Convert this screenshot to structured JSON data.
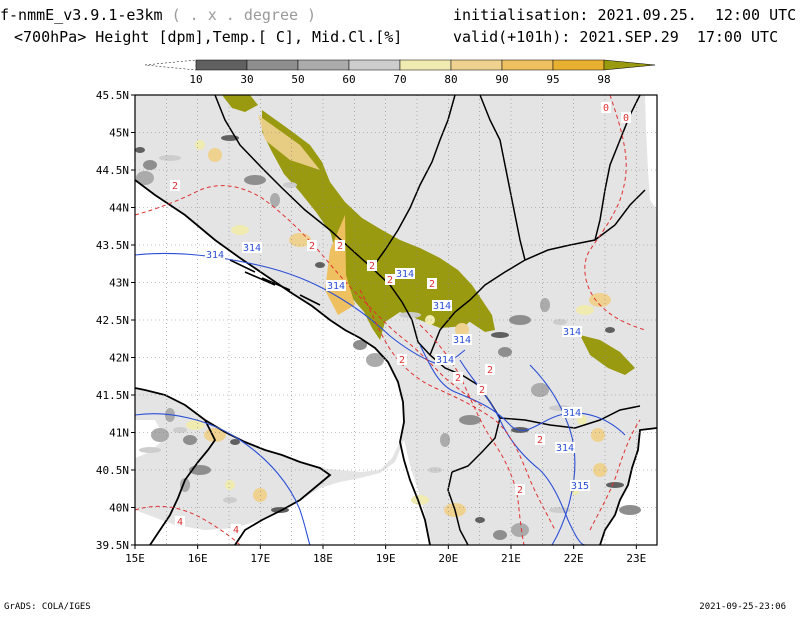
{
  "header": {
    "model": "f-nmmE_v3.9.1-e3km",
    "projection": "( . x . degree )",
    "field": "<700hPa> Height [dpm],Temp.[ C], Mid.Cl.[%]",
    "init": "initialisation: 2021.09.25.  12:00 UTC",
    "valid": "valid(+101h): 2021.SEP.29  17:00 UTC"
  },
  "colorbar": {
    "labels": [
      "10",
      "30",
      "50",
      "60",
      "70",
      "80",
      "90",
      "95",
      "98"
    ],
    "colors": [
      "#ffffff",
      "#606060",
      "#8e8e8e",
      "#ababab",
      "#cdcdcd",
      "#f0ebb0",
      "#efd290",
      "#eec060",
      "#e8b030",
      "#9a9a10"
    ]
  },
  "axes": {
    "lat_labels": [
      "45.5N",
      "45N",
      "44.5N",
      "44N",
      "43.5N",
      "43N",
      "42.5N",
      "42N",
      "41.5N",
      "41N",
      "40.5N",
      "40N",
      "39.5N"
    ],
    "lon_labels": [
      "15E",
      "16E",
      "17E",
      "18E",
      "19E",
      "20E",
      "21E",
      "22E",
      "23E"
    ]
  },
  "contours": {
    "height_labels": [
      "314",
      "314",
      "314",
      "314",
      "314",
      "314",
      "314",
      "314",
      "314",
      "314",
      "315"
    ],
    "temp_labels": [
      "2",
      "2",
      "2",
      "2",
      "2",
      "2",
      "2",
      "2",
      "2",
      "2",
      "2",
      "2",
      "4",
      "4",
      "0",
      "0"
    ]
  },
  "footer": {
    "left": "GrADS: COLA/IGES",
    "right": "2021-09-25-23:06"
  },
  "style": {
    "land": "#e4e4e4",
    "height_contour": "#2b4fd6",
    "temp_contour": "#e03030",
    "cloud_max": "#9a9a10"
  }
}
